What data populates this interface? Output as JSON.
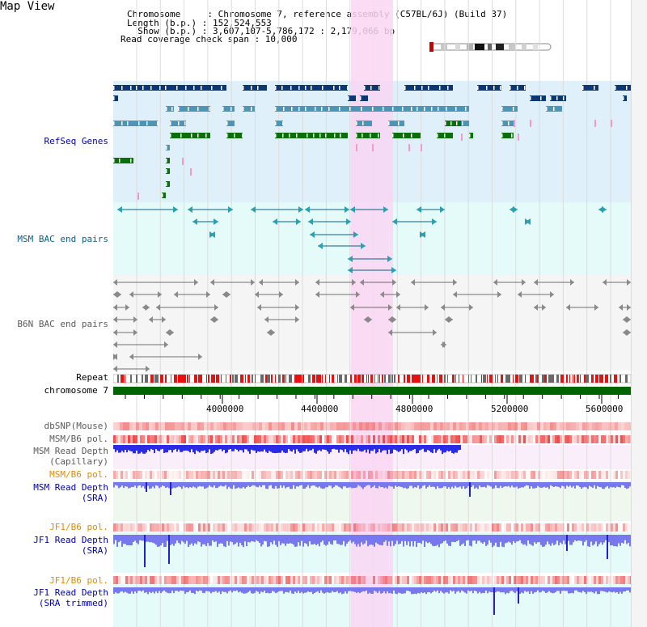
{
  "title": "Map View",
  "header": {
    "line1": "Chromosome     : Chromosome 7, reference assembly (C57BL/6J) (Build 37)",
    "line2": "Length (b.p.) : 152,524,553",
    "line3": "  Show (b.p.) : 3,607,107-5,786,172 : 2,179,066 bp",
    "line4": "Read coverage check span : 10,000"
  },
  "tracks": {
    "refseq": "RefSeq Genes",
    "msm_bac": "MSM BAC end pairs",
    "b6n_bac": "B6N BAC end pairs",
    "repeat": "Repeat",
    "chromosome": "chromosome 7",
    "dbsnp": "dbSNP(Mouse)",
    "msm_b6_pol_1": "MSM/B6 pol.",
    "msm_depth_cap_1": "MSM Read Depth",
    "msm_depth_cap_2": "(Capillary)",
    "msm_b6_pol_2": "MSM/B6 pol.",
    "msm_depth_sra_1": "MSM Read Depth",
    "msm_depth_sra_2": "(SRA)",
    "jf1_b6_pol_1": "JF1/B6 pol.",
    "jf1_depth_sra_1": "JF1 Read Depth",
    "jf1_depth_sra_2": "(SRA)",
    "jf1_b6_pol_2": "JF1/B6 pol.",
    "jf1_depth_trim_1": "JF1 Read Depth",
    "jf1_depth_trim_2": "(SRA trimmed)"
  },
  "axis": {
    "ticks": [
      "4000000",
      "4400000",
      "4800000",
      "5200000",
      "5600000"
    ]
  },
  "colors": {
    "refseq_bg": "#dff0fa",
    "msm_bg": "#e4fbfa",
    "b6n_bg": "#f5f5f5",
    "highlight": "#f9d6f3",
    "gene_navy": "#0b3874",
    "gene_blue": "#4a95b8",
    "gene_green": "#0a6e0a",
    "chromosome_green": "#006400",
    "repeat_red": "#e81010",
    "depth_blue": "#2b2be6",
    "label_blue": "#0000aa",
    "label_teal": "#0b5e86",
    "label_grey": "#5a5a5a",
    "label_orange": "#e08a00"
  }
}
